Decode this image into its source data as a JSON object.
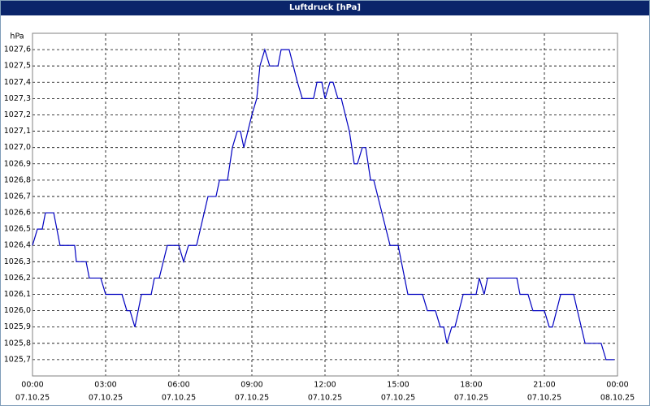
{
  "chart_data": {
    "type": "line",
    "title": "Luftdruck [hPa]",
    "y_label": "hPa",
    "x": [
      0,
      0.2,
      0.4,
      0.53,
      0.87,
      1.13,
      1.73,
      1.8,
      2.2,
      2.33,
      2.8,
      3,
      3.67,
      3.87,
      4,
      4.2,
      4.47,
      4.87,
      5,
      5.2,
      5.53,
      6,
      6.2,
      6.4,
      6.73,
      7.2,
      7.53,
      7.67,
      8,
      8.2,
      8.4,
      8.53,
      8.67,
      9,
      9.2,
      9.33,
      9.53,
      9.73,
      10.07,
      10.2,
      10.53,
      10.87,
      11.07,
      11.53,
      11.67,
      11.87,
      12,
      12.2,
      12.33,
      12.53,
      12.67,
      13,
      13.2,
      13.33,
      13.53,
      13.67,
      13.87,
      14,
      14.67,
      15,
      15.4,
      16,
      16.2,
      16.53,
      16.73,
      16.87,
      17,
      17.2,
      17.33,
      17.67,
      18.2,
      18.33,
      18.53,
      18.67,
      19.87,
      20,
      20.33,
      20.53,
      21,
      21.2,
      21.33,
      21.67,
      22.2,
      22.67,
      23.33,
      23.53,
      23.87
    ],
    "series": [
      {
        "name": "Luftdruck",
        "color": "#0000c0",
        "values": [
          1026.4,
          1026.5,
          1026.5,
          1026.6,
          1026.6,
          1026.4,
          1026.4,
          1026.3,
          1026.3,
          1026.2,
          1026.2,
          1026.1,
          1026.1,
          1026.0,
          1026.0,
          1025.9,
          1026.1,
          1026.1,
          1026.2,
          1026.2,
          1026.4,
          1026.4,
          1026.3,
          1026.4,
          1026.4,
          1026.7,
          1026.7,
          1026.8,
          1026.8,
          1027.0,
          1027.1,
          1027.1,
          1027.0,
          1027.2,
          1027.3,
          1027.5,
          1027.6,
          1027.5,
          1027.5,
          1027.6,
          1027.6,
          1027.4,
          1027.3,
          1027.3,
          1027.4,
          1027.4,
          1027.3,
          1027.4,
          1027.4,
          1027.3,
          1027.3,
          1027.1,
          1026.9,
          1026.9,
          1027.0,
          1027.0,
          1026.8,
          1026.8,
          1026.4,
          1026.4,
          1026.1,
          1026.1,
          1026.0,
          1026.0,
          1025.9,
          1025.9,
          1025.8,
          1025.9,
          1025.9,
          1026.1,
          1026.1,
          1026.2,
          1026.1,
          1026.2,
          1026.2,
          1026.1,
          1026.1,
          1026.0,
          1026.0,
          1025.9,
          1025.9,
          1026.1,
          1026.1,
          1025.8,
          1025.8,
          1025.7,
          1025.7
        ]
      }
    ],
    "xlim": [
      0,
      24
    ],
    "xticks": [
      {
        "value": 0,
        "label": [
          "00:00",
          "07.10.25"
        ]
      },
      {
        "value": 3,
        "label": [
          "03:00",
          "07.10.25"
        ]
      },
      {
        "value": 6,
        "label": [
          "06:00",
          "07.10.25"
        ]
      },
      {
        "value": 9,
        "label": [
          "09:00",
          "07.10.25"
        ]
      },
      {
        "value": 12,
        "label": [
          "12:00",
          "07.10.25"
        ]
      },
      {
        "value": 15,
        "label": [
          "15:00",
          "07.10.25"
        ]
      },
      {
        "value": 18,
        "label": [
          "18:00",
          "07.10.25"
        ]
      },
      {
        "value": 21,
        "label": [
          "21:00",
          "07.10.25"
        ]
      },
      {
        "value": 24,
        "label": [
          "00:00",
          "08.10.25"
        ]
      }
    ],
    "ylim": [
      1025.6,
      1027.7
    ],
    "yticks": [
      {
        "value": 1025.7,
        "label": "1025,7"
      },
      {
        "value": 1025.8,
        "label": "1025,8"
      },
      {
        "value": 1025.9,
        "label": "1025,9"
      },
      {
        "value": 1026.0,
        "label": "1026,0"
      },
      {
        "value": 1026.1,
        "label": "1026,1"
      },
      {
        "value": 1026.2,
        "label": "1026,2"
      },
      {
        "value": 1026.3,
        "label": "1026,3"
      },
      {
        "value": 1026.4,
        "label": "1026,4"
      },
      {
        "value": 1026.5,
        "label": "1026,5"
      },
      {
        "value": 1026.6,
        "label": "1026,6"
      },
      {
        "value": 1026.7,
        "label": "1026,7"
      },
      {
        "value": 1026.8,
        "label": "1026,8"
      },
      {
        "value": 1026.9,
        "label": "1026,9"
      },
      {
        "value": 1027.0,
        "label": "1027,0"
      },
      {
        "value": 1027.1,
        "label": "1027,1"
      },
      {
        "value": 1027.2,
        "label": "1027,2"
      },
      {
        "value": 1027.3,
        "label": "1027,3"
      },
      {
        "value": 1027.4,
        "label": "1027,4"
      },
      {
        "value": 1027.5,
        "label": "1027,5"
      },
      {
        "value": 1027.6,
        "label": "1027,6"
      }
    ],
    "grid": true
  }
}
